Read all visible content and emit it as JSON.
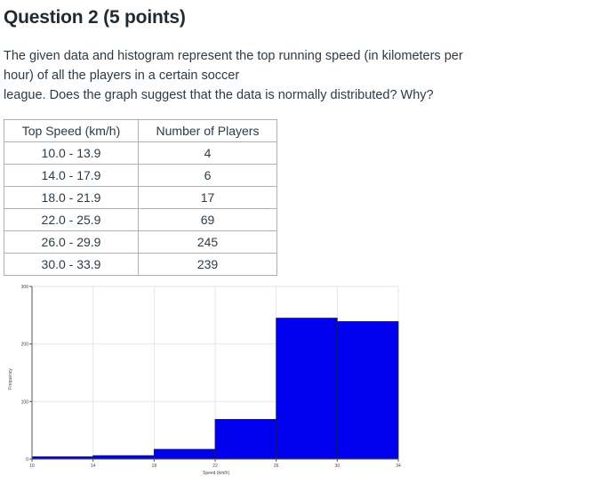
{
  "question": {
    "title": "Question 2 (5 points)",
    "prompt_lines": [
      "The given data and histogram represent the top running speed (in kilometers per",
      "hour) of all the players in a certain soccer",
      "league. Does the graph suggest that the data is normally distributed? Why?"
    ]
  },
  "table": {
    "headers": [
      "Top Speed (km/h)",
      "Number of Players"
    ],
    "rows": [
      [
        "10.0 - 13.9",
        "4"
      ],
      [
        "14.0 - 17.9",
        "6"
      ],
      [
        "18.0 - 21.9",
        "17"
      ],
      [
        "22.0 - 25.9",
        "69"
      ],
      [
        "26.0 - 29.9",
        "245"
      ],
      [
        "30.0 - 33.9",
        "239"
      ]
    ]
  },
  "chart_data": {
    "type": "bar",
    "title": "",
    "xlabel": "Speed (km/h)",
    "ylabel": "Frequency",
    "bin_edges": [
      10,
      14,
      18,
      22,
      26,
      30,
      34
    ],
    "values": [
      4,
      6,
      17,
      69,
      245,
      239
    ],
    "xticks": [
      10,
      14,
      18,
      22,
      26,
      30,
      34
    ],
    "yticks": [
      0,
      100,
      200,
      300
    ],
    "xlim": [
      10,
      34
    ],
    "ylim": [
      0,
      300
    ],
    "grid": true,
    "bar_color": "#0000ee"
  }
}
